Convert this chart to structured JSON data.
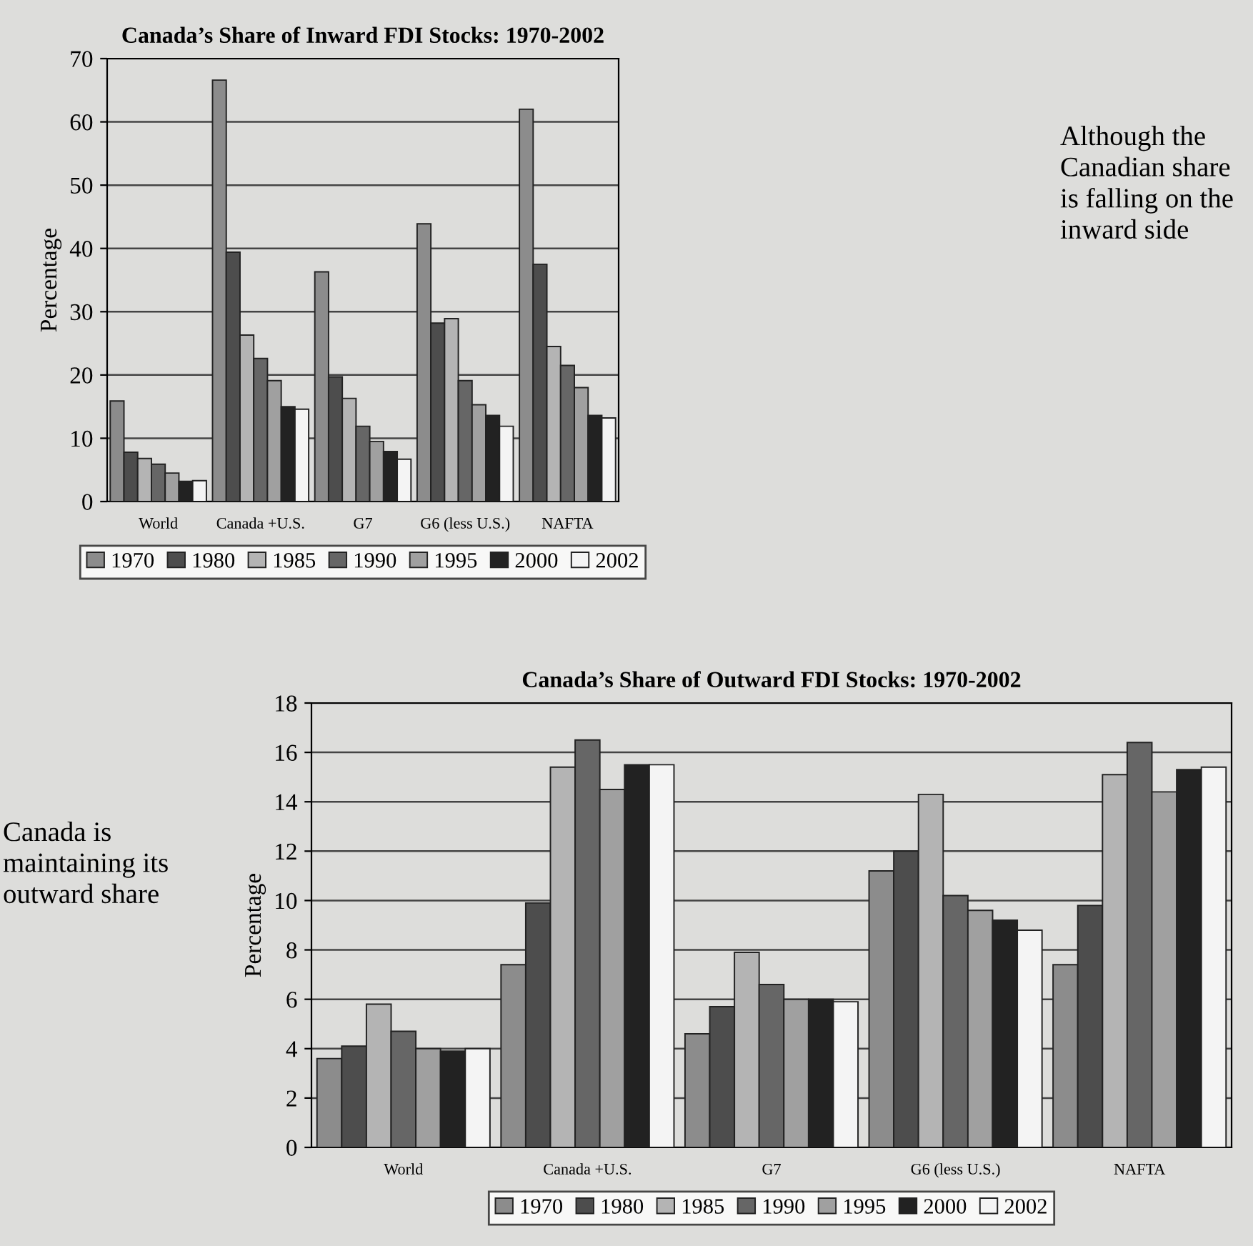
{
  "chart_data": [
    {
      "type": "bar",
      "title": "Canada’s Share of Inward FDI Stocks: 1970-2002",
      "ylabel": "Percentage",
      "categories": [
        "World",
        "Canada +U.S.",
        "G7",
        "G6 (less U.S.)",
        "NAFTA"
      ],
      "series": [
        {
          "name": "1970",
          "color": "#8c8c8c",
          "values": [
            15.9,
            66.6,
            36.3,
            43.9,
            62.0
          ]
        },
        {
          "name": "1980",
          "color": "#4d4d4d",
          "values": [
            7.8,
            39.4,
            19.7,
            28.2,
            37.5
          ]
        },
        {
          "name": "1985",
          "color": "#b4b4b4",
          "values": [
            6.8,
            26.3,
            16.3,
            28.9,
            24.5
          ]
        },
        {
          "name": "1990",
          "color": "#666666",
          "values": [
            5.9,
            22.6,
            11.9,
            19.1,
            21.5
          ]
        },
        {
          "name": "1995",
          "color": "#a0a0a0",
          "values": [
            4.5,
            19.1,
            9.5,
            15.3,
            18.0
          ]
        },
        {
          "name": "2000",
          "color": "#222222",
          "values": [
            3.2,
            15.0,
            7.9,
            13.6,
            13.6
          ]
        },
        {
          "name": "2002",
          "color": "#f4f4f4",
          "values": [
            3.3,
            14.6,
            6.7,
            11.9,
            13.2
          ]
        }
      ],
      "ylim": [
        0,
        70
      ],
      "yticks": [
        0,
        10,
        20,
        30,
        40,
        50,
        60,
        70
      ],
      "grid": "y",
      "legend": "bottom",
      "annotations": [
        "Although the Canadian share is falling on the inward side"
      ]
    },
    {
      "type": "bar",
      "title": "Canada’s Share of Outward FDI Stocks: 1970-2002",
      "ylabel": "Percentage",
      "categories": [
        "World",
        "Canada +U.S.",
        "G7",
        "G6 (less U.S.)",
        "NAFTA"
      ],
      "series": [
        {
          "name": "1970",
          "color": "#8c8c8c",
          "values": [
            3.6,
            7.4,
            4.6,
            11.2,
            7.4
          ]
        },
        {
          "name": "1980",
          "color": "#4d4d4d",
          "values": [
            4.1,
            9.9,
            5.7,
            12.0,
            9.8
          ]
        },
        {
          "name": "1985",
          "color": "#b4b4b4",
          "values": [
            5.8,
            15.4,
            7.9,
            14.3,
            15.1
          ]
        },
        {
          "name": "1990",
          "color": "#666666",
          "values": [
            4.7,
            16.5,
            6.6,
            10.2,
            16.4
          ]
        },
        {
          "name": "1995",
          "color": "#a0a0a0",
          "values": [
            4.0,
            14.5,
            6.0,
            9.6,
            14.4
          ]
        },
        {
          "name": "2000",
          "color": "#222222",
          "values": [
            3.9,
            15.5,
            6.0,
            9.2,
            15.3
          ]
        },
        {
          "name": "2002",
          "color": "#f4f4f4",
          "values": [
            4.0,
            15.5,
            5.9,
            8.8,
            15.4
          ]
        }
      ],
      "ylim": [
        0,
        18
      ],
      "yticks": [
        0,
        2,
        4,
        6,
        8,
        10,
        12,
        14,
        16,
        18
      ],
      "grid": "y",
      "legend": "bottom",
      "annotations": [
        "Canada is maintaining its outward share"
      ]
    }
  ]
}
